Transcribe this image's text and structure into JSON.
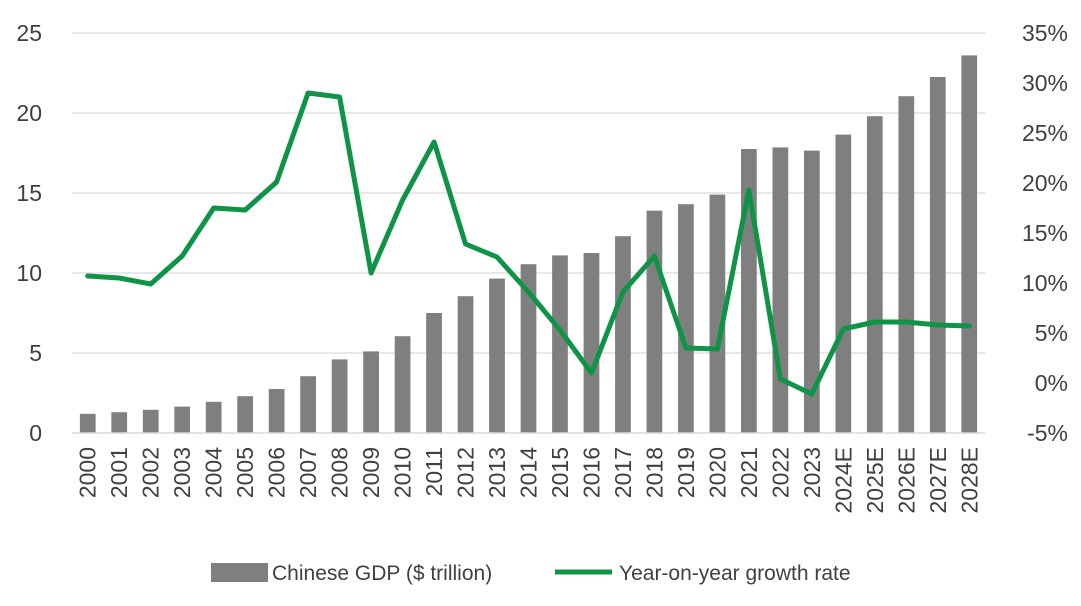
{
  "chart_data": {
    "type": "bar+line",
    "categories": [
      "2000",
      "2001",
      "2002",
      "2003",
      "2004",
      "2005",
      "2006",
      "2007",
      "2008",
      "2009",
      "2010",
      "2011",
      "2012",
      "2013",
      "2014",
      "2015",
      "2016",
      "2017",
      "2018",
      "2019",
      "2020",
      "2021",
      "2022",
      "2023",
      "2024E",
      "2025E",
      "2026E",
      "2027E",
      "2028E"
    ],
    "series": [
      {
        "name": "Chinese GDP ($ trillion)",
        "type": "bar",
        "axis": "left",
        "color": "#7f7f7f",
        "values": [
          1.2,
          1.3,
          1.45,
          1.65,
          1.95,
          2.3,
          2.75,
          3.55,
          4.6,
          5.1,
          6.05,
          7.5,
          8.55,
          9.65,
          10.55,
          11.1,
          11.25,
          12.3,
          13.9,
          14.3,
          14.9,
          17.75,
          17.85,
          17.65,
          18.65,
          19.8,
          21.05,
          22.25,
          23.6
        ]
      },
      {
        "name": "Year-on-year growth rate",
        "type": "line",
        "axis": "right",
        "color": "#0f9447",
        "values": [
          10.7,
          10.5,
          9.9,
          12.7,
          17.5,
          17.3,
          20.1,
          29.0,
          28.6,
          11.0,
          18.3,
          24.1,
          13.9,
          12.6,
          9.1,
          5.3,
          1.0,
          9.1,
          12.7,
          3.5,
          3.4,
          19.3,
          0.4,
          -1.1,
          5.4,
          6.1,
          6.1,
          5.8,
          5.7
        ]
      }
    ],
    "y_left": {
      "min": 0,
      "max": 25,
      "ticks": [
        "0",
        "5",
        "10",
        "15",
        "20",
        "25"
      ]
    },
    "y_right": {
      "min": -5,
      "max": 35,
      "ticks": [
        "-5%",
        "0%",
        "5%",
        "10%",
        "15%",
        "20%",
        "25%",
        "30%",
        "35%"
      ]
    },
    "grid": true,
    "legend": {
      "position": "bottom",
      "entries": [
        "Chinese GDP ($ trillion)",
        "Year-on-year growth rate"
      ]
    }
  }
}
